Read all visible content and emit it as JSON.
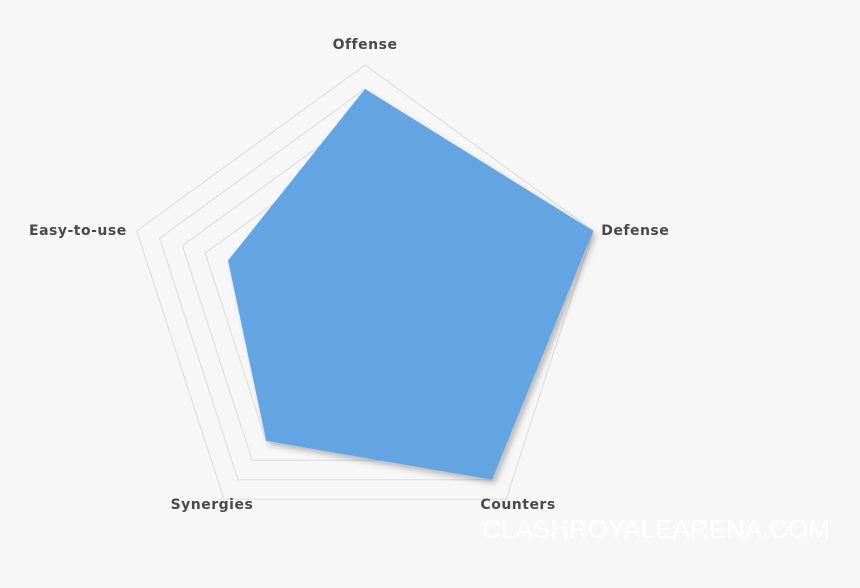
{
  "chart_data": {
    "type": "radar",
    "categories": [
      "Offense",
      "Defense",
      "Counters",
      "Synergies",
      "Easy-to-use"
    ],
    "values": [
      9,
      10,
      9,
      7,
      6
    ],
    "color": "#63a5e2",
    "rlim": [
      0,
      10
    ],
    "rticks": [
      1,
      2,
      3,
      4,
      5,
      6,
      7,
      8,
      9,
      10
    ],
    "grid": true,
    "watermark": "CLASHROYALEARENA.COM"
  }
}
